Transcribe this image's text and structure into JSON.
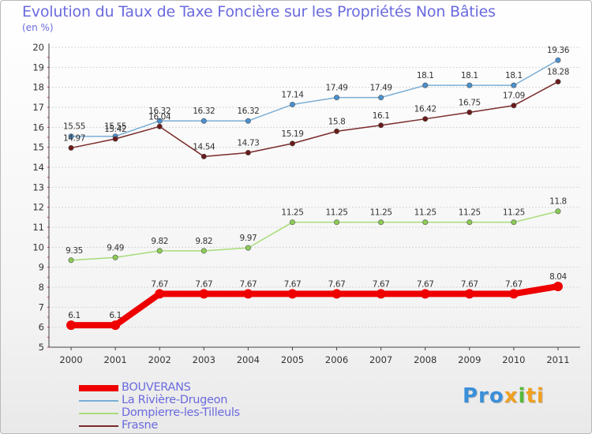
{
  "title": "Evolution du Taux de Taxe Foncière sur les Propriétés Non Bâties",
  "unit_label": "(en %)",
  "logo": {
    "parts": [
      {
        "text": "Pro",
        "color": "#3a8fd9"
      },
      {
        "text": "x",
        "color": "#f0a020"
      },
      {
        "text": "i",
        "color": "#56b93a"
      },
      {
        "text": "ti",
        "color": "#f0a020"
      }
    ]
  },
  "chart_data": {
    "type": "line",
    "x": [
      "2000",
      "2001",
      "2002",
      "2003",
      "2004",
      "2005",
      "2006",
      "2007",
      "2008",
      "2009",
      "2010",
      "2011"
    ],
    "ylim": [
      5,
      20
    ],
    "yticks": [
      5,
      6,
      7,
      8,
      9,
      10,
      11,
      12,
      13,
      14,
      15,
      16,
      17,
      18,
      19,
      20
    ],
    "grid": "horizontal",
    "legend_position": "bottom-left",
    "series": [
      {
        "name": "BOUVERANS",
        "color": "#ee0000",
        "marker_color": "#ee0000",
        "emphasis": "thick",
        "values": [
          6.1,
          6.1,
          7.67,
          7.67,
          7.67,
          7.67,
          7.67,
          7.67,
          7.67,
          7.67,
          7.67,
          8.04
        ],
        "labels": [
          "6.1",
          "6.1",
          "7.67",
          "7.67",
          "7.67",
          "7.67",
          "7.67",
          "7.67",
          "7.67",
          "7.67",
          "7.67",
          "8.04"
        ]
      },
      {
        "name": "La Rivière-Drugeon",
        "color": "#7aaed6",
        "marker_color": "#4a90d0",
        "emphasis": "normal",
        "values": [
          15.55,
          15.55,
          16.32,
          16.32,
          16.32,
          17.14,
          17.49,
          17.49,
          18.1,
          18.1,
          18.1,
          19.36
        ],
        "labels": [
          "15.55",
          "15.55",
          "16.32",
          "16.32",
          "16.32",
          "17.14",
          "17.49",
          "17.49",
          "18.1",
          "18.1",
          "18.1",
          "19.36"
        ]
      },
      {
        "name": "Dompierre-les-Tilleuls",
        "color": "#a8dc7a",
        "marker_color": "#8ccc55",
        "emphasis": "normal",
        "values": [
          9.35,
          9.49,
          9.82,
          9.82,
          9.97,
          11.25,
          11.25,
          11.25,
          11.25,
          11.25,
          11.25,
          11.8
        ],
        "labels": [
          "9.35",
          "9.49",
          "9.82",
          "9.82",
          "9.97",
          "11.25",
          "11.25",
          "11.25",
          "11.25",
          "11.25",
          "11.25",
          "11.8"
        ]
      },
      {
        "name": "Frasne",
        "color": "#7a2a2a",
        "marker_color": "#6a1a1a",
        "emphasis": "normal",
        "values": [
          14.97,
          15.42,
          16.04,
          14.54,
          14.73,
          15.19,
          15.8,
          16.1,
          16.42,
          16.75,
          17.09,
          18.28
        ],
        "labels": [
          "14.97",
          "15.42",
          "16.04",
          "14.54",
          "14.73",
          "15.19",
          "15.8",
          "16.1",
          "16.42",
          "16.75",
          "17.09",
          "18.28"
        ]
      }
    ]
  }
}
